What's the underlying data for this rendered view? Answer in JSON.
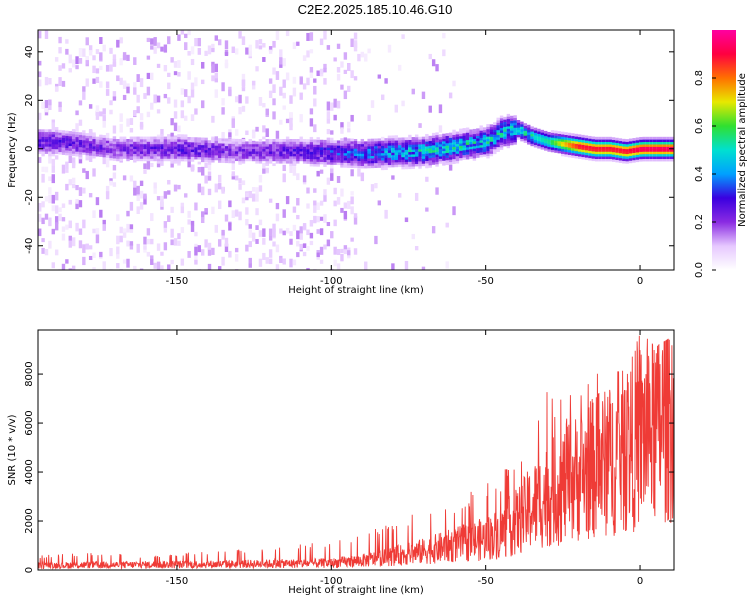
{
  "title": "C2E2.2025.185.10.46.G10",
  "chart_data": [
    {
      "type": "heatmap",
      "xlabel": "Height of straight line (km)",
      "ylabel": "Frequency (Hz)",
      "xlim": [
        -195,
        11
      ],
      "ylim": [
        -50,
        49
      ],
      "xticks": [
        -150,
        -100,
        -50,
        0
      ],
      "yticks": [
        -40,
        -20,
        0,
        20,
        40
      ],
      "colorbar": {
        "label": "Normalized spectral amplitude",
        "range": [
          0.0,
          1.0
        ],
        "ticks": [
          0.0,
          0.2,
          0.4,
          0.6,
          0.8
        ],
        "tick_labels": [
          "0.0",
          "0.2",
          "0.4",
          "0.6",
          "0.8"
        ],
        "colormap": [
          "#ffffff",
          "#e6c8ff",
          "#8a2be2",
          "#3a00e0",
          "#00a0ff",
          "#00e0d0",
          "#30e030",
          "#e8e800",
          "#ff7000",
          "#ff0040",
          "#ff00a0"
        ]
      },
      "ridge": {
        "x": [
          -190,
          -170,
          -150,
          -130,
          -110,
          -90,
          -70,
          -50,
          -45,
          -40,
          -35,
          -30,
          -25,
          -20,
          -15,
          -10,
          -5,
          0,
          10
        ],
        "frequency": [
          3,
          0,
          0,
          -1,
          -1,
          -2,
          -1,
          3,
          7,
          8,
          5,
          3,
          2,
          1,
          0,
          0,
          -1,
          0,
          0
        ],
        "amplitude": [
          0.25,
          0.2,
          0.25,
          0.2,
          0.25,
          0.35,
          0.45,
          0.45,
          0.45,
          0.45,
          0.5,
          0.55,
          0.75,
          0.9,
          0.9,
          0.9,
          0.9,
          0.95,
          0.95
        ]
      }
    },
    {
      "type": "line",
      "xlabel": "Height of straight line (km)",
      "ylabel": "SNR (10 * v/v)",
      "xlim": [
        -195,
        11
      ],
      "ylim": [
        0,
        9800
      ],
      "xticks": [
        -150,
        -100,
        -50,
        0
      ],
      "yticks": [
        0,
        2000,
        4000,
        6000,
        8000
      ],
      "color": "#ef3b36",
      "envelope_x": [
        -195,
        -180,
        -160,
        -140,
        -120,
        -100,
        -90,
        -80,
        -70,
        -60,
        -50,
        -45,
        -40,
        -35,
        -30,
        -25,
        -20,
        -15,
        -10,
        -5,
        0,
        5,
        11
      ],
      "envelope_mean": [
        220,
        240,
        250,
        270,
        300,
        330,
        450,
        650,
        900,
        1200,
        1500,
        1800,
        2300,
        3000,
        3600,
        4000,
        4500,
        4900,
        5200,
        5700,
        6500,
        6900,
        7600
      ],
      "envelope_peak": [
        600,
        700,
        600,
        800,
        900,
        1200,
        1500,
        1900,
        2600,
        2900,
        3500,
        3900,
        5000,
        6200,
        7400,
        7300,
        7500,
        8100,
        8400,
        8700,
        9800,
        9100,
        9600
      ]
    }
  ]
}
